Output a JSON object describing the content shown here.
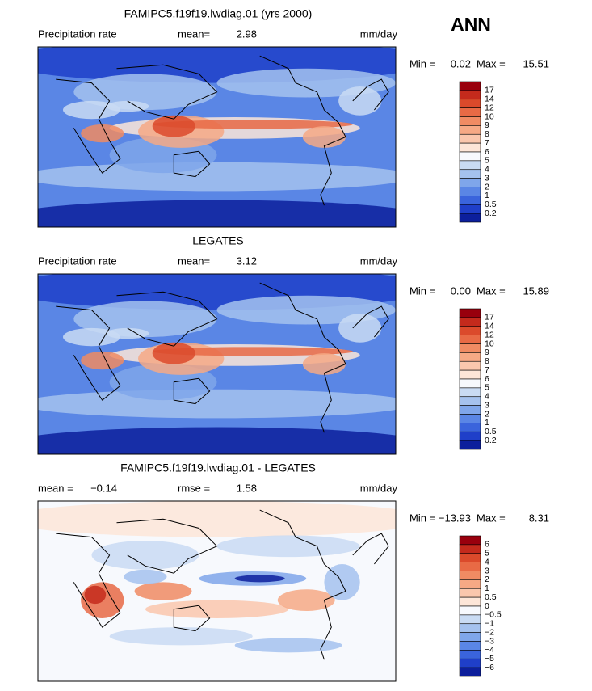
{
  "season": "ANN",
  "panels": [
    {
      "title": "FAMIPC5.f19f19.lwdiag.01 (yrs 2000)",
      "subtitle": "Precipitation rate",
      "stats": [
        {
          "label": "mean=",
          "value": "2.98"
        }
      ],
      "units": "mm/day",
      "min_label": "Min =",
      "min": "0.02",
      "max_label": "Max =",
      "max": "15.51",
      "colorbar": {
        "labels": [
          "17",
          "14",
          "12",
          "10",
          "9",
          "8",
          "7",
          "6",
          "5",
          "4",
          "3",
          "2",
          "1",
          "0.5",
          "0.2"
        ],
        "colors": [
          "#99000d",
          "#c42a1c",
          "#db4a2b",
          "#e86a45",
          "#f08b63",
          "#f6a985",
          "#fac7ad",
          "#fde6d8",
          "#f7f9fd",
          "#c9dbf3",
          "#a5c2ee",
          "#7fa6ea",
          "#5a86e5",
          "#3a64dc",
          "#1f3fc9",
          "#0c1f9c"
        ]
      }
    },
    {
      "title": "LEGATES",
      "subtitle": "Precipitation rate",
      "stats": [
        {
          "label": "mean=",
          "value": "3.12"
        }
      ],
      "units": "mm/day",
      "min_label": "Min =",
      "min": "0.00",
      "max_label": "Max =",
      "max": "15.89",
      "colorbar": {
        "labels": [
          "17",
          "14",
          "12",
          "10",
          "9",
          "8",
          "7",
          "6",
          "5",
          "4",
          "3",
          "2",
          "1",
          "0.5",
          "0.2"
        ],
        "colors": [
          "#99000d",
          "#c42a1c",
          "#db4a2b",
          "#e86a45",
          "#f08b63",
          "#f6a985",
          "#fac7ad",
          "#fde6d8",
          "#f7f9fd",
          "#c9dbf3",
          "#a5c2ee",
          "#7fa6ea",
          "#5a86e5",
          "#3a64dc",
          "#1f3fc9",
          "#0c1f9c"
        ]
      }
    },
    {
      "title": "FAMIPC5.f19f19.lwdiag.01 - LEGATES",
      "stats": [
        {
          "label": "mean =",
          "value": "−0.14"
        },
        {
          "label": "rmse =",
          "value": "1.58"
        }
      ],
      "units": "mm/day",
      "min_label": "Min =",
      "min": "−13.93",
      "max_label": "Max =",
      "max": "8.31",
      "colorbar": {
        "labels": [
          "6",
          "5",
          "4",
          "3",
          "2",
          "1",
          "0.5",
          "0",
          "−0.5",
          "−1",
          "−2",
          "−3",
          "−4",
          "−5",
          "−6"
        ],
        "colors": [
          "#99000d",
          "#c42a1c",
          "#db4a2b",
          "#e86a45",
          "#f08b63",
          "#f6a985",
          "#fac7ad",
          "#fde6d8",
          "#f7f9fd",
          "#c9dbf3",
          "#a5c2ee",
          "#7fa6ea",
          "#5a86e5",
          "#3a64dc",
          "#1f3fc9",
          "#0c1f9c"
        ]
      }
    }
  ]
}
